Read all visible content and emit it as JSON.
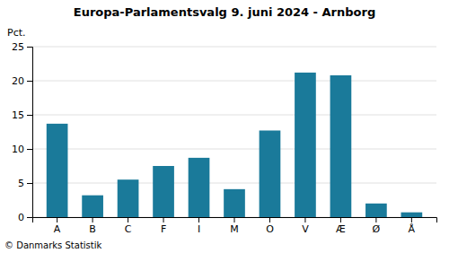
{
  "chart_data": {
    "type": "bar",
    "title": "Europa-Parlamentsvalg 9. juni 2024 - Arnborg",
    "ylabel": "Pct.",
    "annotations": [
      "© Danmarks Statistik"
    ],
    "categories": [
      "A",
      "B",
      "C",
      "F",
      "I",
      "M",
      "O",
      "V",
      "Æ",
      "Ø",
      "Å"
    ],
    "values": [
      13.7,
      3.2,
      5.5,
      7.5,
      8.7,
      4.1,
      12.7,
      21.2,
      20.8,
      2.0,
      0.7
    ],
    "color": "#1a7a9a",
    "ylim": [
      0,
      25
    ],
    "yticks": [
      0,
      5,
      10,
      15,
      20,
      25
    ],
    "grid": true
  }
}
